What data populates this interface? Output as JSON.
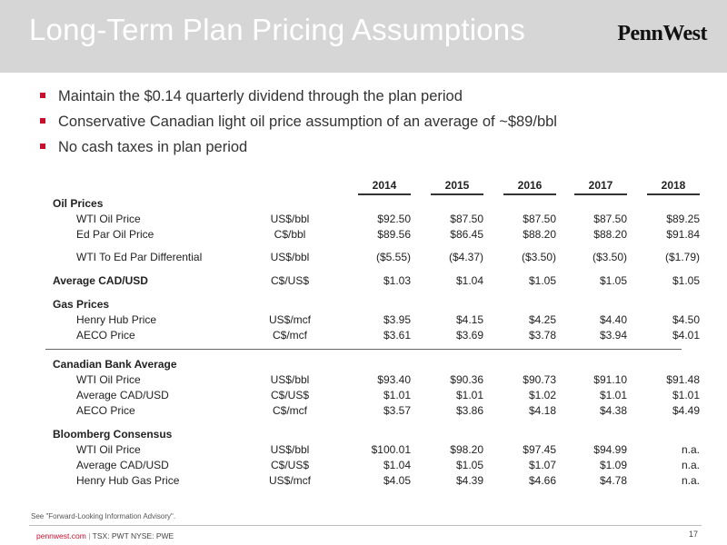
{
  "header": {
    "title": "Long-Term Plan Pricing Assumptions",
    "logo_text": "PennWest"
  },
  "bullets": [
    "Maintain the $0.14 quarterly dividend through the plan period",
    "Conservative Canadian light oil price assumption of an average of ~$89/bbl",
    "No cash taxes in plan period"
  ],
  "table": {
    "years": [
      "2014",
      "2015",
      "2016",
      "2017",
      "2018"
    ],
    "sections": {
      "oil": {
        "title": "Oil Prices",
        "rows": [
          {
            "label": "WTI Oil Price",
            "unit": "US$/bbl",
            "values": [
              "$92.50",
              "$87.50",
              "$87.50",
              "$87.50",
              "$89.25"
            ]
          },
          {
            "label": "Ed Par Oil Price",
            "unit": "C$/bbl",
            "values": [
              "$89.56",
              "$86.45",
              "$88.20",
              "$88.20",
              "$91.84"
            ]
          },
          {
            "label": "WTI To Ed Par Differential",
            "unit": "US$/bbl",
            "values": [
              "($5.55)",
              "($4.37)",
              "($3.50)",
              "($3.50)",
              "($1.79)"
            ]
          }
        ]
      },
      "cad": {
        "title": "Average CAD/USD",
        "unit": "C$/US$",
        "values": [
          "$1.03",
          "$1.04",
          "$1.05",
          "$1.05",
          "$1.05"
        ]
      },
      "gas": {
        "title": "Gas Prices",
        "rows": [
          {
            "label": "Henry Hub Price",
            "unit": "US$/mcf",
            "values": [
              "$3.95",
              "$4.15",
              "$4.25",
              "$4.40",
              "$4.50"
            ]
          },
          {
            "label": "AECO Price",
            "unit": "C$/mcf",
            "values": [
              "$3.61",
              "$3.69",
              "$3.78",
              "$3.94",
              "$4.01"
            ]
          }
        ]
      },
      "bank": {
        "title": "Canadian Bank Average",
        "rows": [
          {
            "label": "WTI Oil Price",
            "unit": "US$/bbl",
            "values": [
              "$93.40",
              "$90.36",
              "$90.73",
              "$91.10",
              "$91.48"
            ]
          },
          {
            "label": "Average CAD/USD",
            "unit": "C$/US$",
            "values": [
              "$1.01",
              "$1.01",
              "$1.02",
              "$1.01",
              "$1.01"
            ]
          },
          {
            "label": "AECO Price",
            "unit": "C$/mcf",
            "values": [
              "$3.57",
              "$3.86",
              "$4.18",
              "$4.38",
              "$4.49"
            ]
          }
        ]
      },
      "bloomberg": {
        "title": "Bloomberg Consensus",
        "rows": [
          {
            "label": "WTI Oil Price",
            "unit": "US$/bbl",
            "values": [
              "$100.01",
              "$98.20",
              "$97.45",
              "$94.99",
              "n.a."
            ]
          },
          {
            "label": "Average CAD/USD",
            "unit": "C$/US$",
            "values": [
              "$1.04",
              "$1.05",
              "$1.07",
              "$1.09",
              "n.a."
            ]
          },
          {
            "label": "Henry Hub Gas Price",
            "unit": "US$/mcf",
            "values": [
              "$4.05",
              "$4.39",
              "$4.66",
              "$4.78",
              "n.a."
            ]
          }
        ]
      }
    }
  },
  "advisory": "See \"Forward-Looking Information Advisory\".",
  "footer": {
    "site": "pennwest.com",
    "separator": "|",
    "tickers": "TSX: PWT  NYSE: PWE",
    "page": "17"
  },
  "colors": {
    "header_band": "#d6d6d6",
    "bullet_accent": "#c8102e"
  }
}
